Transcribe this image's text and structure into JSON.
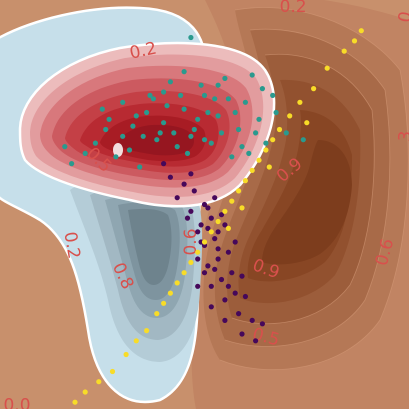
{
  "chart_data": {
    "type": "scatter",
    "title": "",
    "xlabel": "",
    "ylabel": "",
    "xlim": [
      -3.0,
      3.0
    ],
    "ylim": [
      -3.0,
      3.0
    ],
    "grid": false,
    "colors": {
      "background": "#c8906c",
      "teal_points": "#2a9a8e",
      "purple_points": "#46085a",
      "yellow_points": "#f8dc28",
      "red_fill": "#c43a44",
      "blue_fill": "#c6dfea",
      "brown_fill": "#8c4a26",
      "contour_line": "#ffffff",
      "contour_text": "#d8504c"
    },
    "contour_labels": [
      {
        "text": "0.2",
        "x": -0.9,
        "y": 2.25,
        "rot": -12
      },
      {
        "text": "0.2",
        "x": 1.3,
        "y": 2.9,
        "rot": 0
      },
      {
        "text": "0.2",
        "x": -1.95,
        "y": -0.6,
        "rot": 80
      },
      {
        "text": "0.5",
        "x": -1.55,
        "y": 0.65,
        "rot": 45
      },
      {
        "text": "0.5",
        "x": 0.9,
        "y": -1.95,
        "rot": 15
      },
      {
        "text": "0.8",
        "x": -1.2,
        "y": -1.05,
        "rot": 65
      },
      {
        "text": "0.6",
        "x": -0.2,
        "y": -0.55,
        "rot": -90
      },
      {
        "text": "0.9",
        "x": 0.9,
        "y": -0.95,
        "rot": 20
      },
      {
        "text": "0.6",
        "x": 2.65,
        "y": -0.7,
        "rot": -75
      },
      {
        "text": "3",
        "x": 2.95,
        "y": 1.0,
        "rot": -85
      },
      {
        "text": "0.9",
        "x": 1.25,
        "y": 0.5,
        "rot": -40
      },
      {
        "text": "0.0",
        "x": -2.75,
        "y": -2.95,
        "rot": 0
      },
      {
        "text": "0",
        "x": 2.95,
        "y": 2.75,
        "rot": -80
      }
    ],
    "series": [
      {
        "color": "#2a9a8e",
        "points": [
          [
            -1.45,
            1.1
          ],
          [
            -1.2,
            1.5
          ],
          [
            -1.0,
            1.3
          ],
          [
            -0.8,
            1.6
          ],
          [
            -0.6,
            1.2
          ],
          [
            -0.5,
            1.8
          ],
          [
            -0.3,
            1.4
          ],
          [
            -0.2,
            1.0
          ],
          [
            0.0,
            1.6
          ],
          [
            0.2,
            1.3
          ],
          [
            0.3,
            1.85
          ],
          [
            0.5,
            1.1
          ],
          [
            0.6,
            1.5
          ],
          [
            0.8,
            1.25
          ],
          [
            1.0,
            1.6
          ],
          [
            0.9,
            0.9
          ],
          [
            0.7,
            1.9
          ],
          [
            0.4,
            0.7
          ],
          [
            0.1,
            0.9
          ],
          [
            -0.1,
            1.25
          ],
          [
            -0.4,
            0.85
          ],
          [
            -0.7,
            0.95
          ],
          [
            -0.9,
            1.0
          ],
          [
            -1.1,
            0.8
          ],
          [
            -1.3,
            0.7
          ],
          [
            -1.6,
            0.9
          ],
          [
            -1.75,
            0.75
          ],
          [
            -2.05,
            0.85
          ],
          [
            -1.95,
            0.6
          ],
          [
            -1.5,
            1.4
          ],
          [
            -0.35,
            1.6
          ],
          [
            0.15,
            1.55
          ],
          [
            0.45,
            1.35
          ],
          [
            0.75,
            1.05
          ],
          [
            -0.05,
            1.75
          ],
          [
            -0.55,
            1.45
          ],
          [
            -0.85,
            1.35
          ],
          [
            -0.25,
            0.75
          ],
          [
            0.25,
            1.05
          ],
          [
            0.55,
            0.85
          ],
          [
            1.2,
            1.05
          ],
          [
            1.45,
            0.95
          ],
          [
            0.85,
            1.7
          ],
          [
            0.35,
            1.55
          ],
          [
            -0.15,
            1.1
          ],
          [
            -0.6,
            1.65
          ],
          [
            -1.05,
            1.15
          ],
          [
            -1.4,
            1.25
          ],
          [
            -0.45,
            1.05
          ],
          [
            0.05,
            1.35
          ],
          [
            -0.2,
            2.45
          ],
          [
            -0.75,
            1.55
          ],
          [
            0.0,
            0.95
          ],
          [
            0.65,
            0.75
          ],
          [
            1.05,
            1.35
          ],
          [
            -0.95,
            0.55
          ],
          [
            -0.3,
            1.95
          ],
          [
            0.2,
            1.75
          ],
          [
            -0.65,
            1.05
          ],
          [
            -1.2,
            1.0
          ]
        ]
      },
      {
        "color": "#46085a",
        "points": [
          [
            -0.3,
            0.3
          ],
          [
            -0.2,
            -0.1
          ],
          [
            -0.1,
            -0.4
          ],
          [
            0.0,
            -0.6
          ],
          [
            0.05,
            -0.9
          ],
          [
            0.1,
            -1.2
          ],
          [
            0.15,
            -0.5
          ],
          [
            0.2,
            -0.8
          ],
          [
            0.25,
            -1.1
          ],
          [
            0.3,
            -1.4
          ],
          [
            -0.4,
            0.1
          ],
          [
            -0.5,
            0.4
          ],
          [
            -0.15,
            0.2
          ],
          [
            0.0,
            0.0
          ],
          [
            -0.05,
            -0.3
          ],
          [
            0.1,
            -0.2
          ],
          [
            0.2,
            -0.4
          ],
          [
            0.35,
            -0.7
          ],
          [
            0.4,
            -1.0
          ],
          [
            0.45,
            -1.3
          ],
          [
            0.5,
            -1.6
          ],
          [
            0.55,
            -1.9
          ],
          [
            0.3,
            -1.7
          ],
          [
            0.1,
            -1.5
          ],
          [
            -0.1,
            -0.8
          ],
          [
            0.05,
            -0.05
          ],
          [
            -0.25,
            -0.2
          ],
          [
            0.25,
            -0.15
          ],
          [
            0.15,
            -0.95
          ],
          [
            0.35,
            -1.2
          ],
          [
            0.6,
            -1.35
          ],
          [
            0.7,
            -1.7
          ],
          [
            0.75,
            -2.0
          ],
          [
            0.85,
            -1.75
          ],
          [
            0.45,
            -0.55
          ],
          [
            0.2,
            -0.65
          ],
          [
            -0.05,
            -0.55
          ],
          [
            0.05,
            -0.35
          ],
          [
            0.15,
            0.1
          ],
          [
            -0.2,
            0.45
          ],
          [
            -0.6,
            0.6
          ],
          [
            0.55,
            -1.05
          ],
          [
            0.0,
            -1.0
          ],
          [
            -0.1,
            -1.2
          ],
          [
            0.3,
            -0.3
          ]
        ]
      },
      {
        "color": "#f8dc28",
        "points": [
          [
            2.2,
            2.4
          ],
          [
            2.05,
            2.25
          ],
          [
            1.8,
            2.0
          ],
          [
            1.6,
            1.7
          ],
          [
            1.4,
            1.5
          ],
          [
            1.25,
            1.3
          ],
          [
            1.1,
            1.1
          ],
          [
            1.0,
            0.95
          ],
          [
            0.9,
            0.8
          ],
          [
            0.8,
            0.65
          ],
          [
            0.7,
            0.5
          ],
          [
            0.6,
            0.35
          ],
          [
            0.5,
            0.2
          ],
          [
            0.4,
            0.05
          ],
          [
            0.3,
            -0.1
          ],
          [
            0.2,
            -0.25
          ],
          [
            0.1,
            -0.4
          ],
          [
            0.0,
            -0.55
          ],
          [
            -0.1,
            -0.7
          ],
          [
            -0.2,
            -0.85
          ],
          [
            -0.3,
            -1.0
          ],
          [
            -0.4,
            -1.15
          ],
          [
            -0.5,
            -1.3
          ],
          [
            -0.6,
            -1.45
          ],
          [
            -0.7,
            -1.6
          ],
          [
            -0.85,
            -1.85
          ],
          [
            -1.0,
            -2.0
          ],
          [
            -1.15,
            -2.2
          ],
          [
            -1.35,
            -2.45
          ],
          [
            -1.55,
            -2.6
          ],
          [
            -1.75,
            -2.75
          ],
          [
            -1.9,
            -2.9
          ],
          [
            0.55,
            -0.05
          ],
          [
            0.35,
            -0.35
          ],
          [
            0.95,
            0.55
          ],
          [
            1.5,
            1.2
          ],
          [
            2.3,
            2.55
          ]
        ]
      }
    ]
  }
}
